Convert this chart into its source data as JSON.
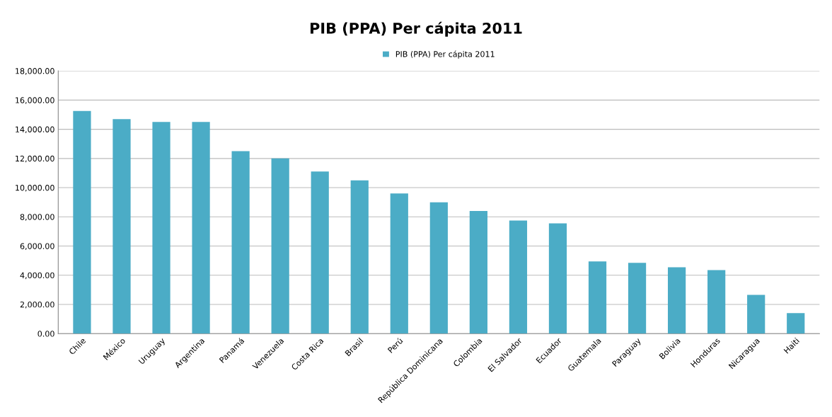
{
  "chart_data": {
    "type": "bar",
    "title": "PIB (PPA) Per cápita 2011",
    "categories": [
      "Chile",
      "México",
      "Uruguay",
      "Argentina",
      "Panamá",
      "Venezuela",
      "Costa Rica",
      "Brasil",
      "Perú",
      "República Dominicana",
      "Colombia",
      "El Salvador",
      "Ecuador",
      "Guatemala",
      "Paraguay",
      "Bolivia",
      "Honduras",
      "Nicaragua",
      "Haiti"
    ],
    "series": [
      {
        "name": "PIB (PPA) Per cápita 2011",
        "color": "#4bacc6",
        "values": [
          15250,
          14700,
          14500,
          14500,
          12500,
          12000,
          11100,
          10500,
          9600,
          9000,
          8400,
          7750,
          7550,
          4950,
          4850,
          4550,
          4350,
          2650,
          1400
        ]
      }
    ],
    "ylim": [
      0,
      18000
    ],
    "yticks": [
      {
        "value": 0,
        "label": "0.00"
      },
      {
        "value": 2000,
        "label": "2,000.00"
      },
      {
        "value": 4000,
        "label": "4,000.00"
      },
      {
        "value": 6000,
        "label": "6,000.00"
      },
      {
        "value": 8000,
        "label": "8,000.00"
      },
      {
        "value": 10000,
        "label": "10,000.00"
      },
      {
        "value": 12000,
        "label": "12,000.00"
      },
      {
        "value": 14000,
        "label": "14,000.00"
      },
      {
        "value": 16000,
        "label": "16,000.00"
      },
      {
        "value": 18000,
        "label": "18,000.00"
      }
    ],
    "grid": "y",
    "legend": "top"
  }
}
